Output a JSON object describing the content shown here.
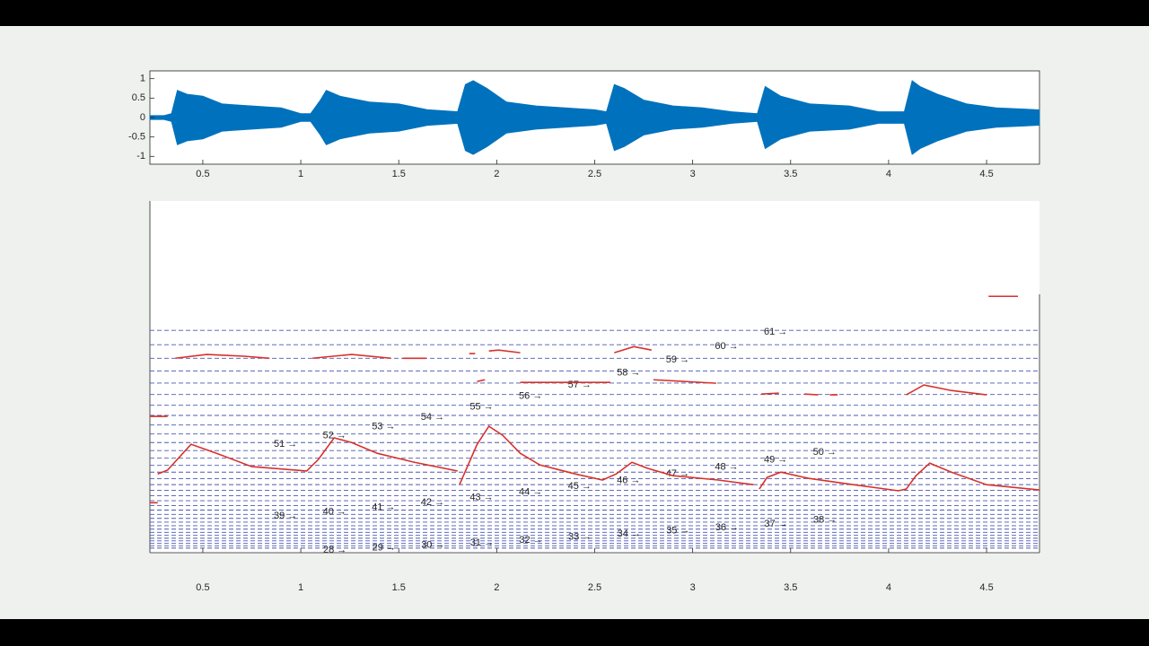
{
  "chart_data": [
    {
      "type": "waveform",
      "x": [
        0.23,
        0.3,
        0.34,
        0.37,
        0.42,
        0.5,
        0.6,
        0.75,
        0.9,
        1.0,
        1.05,
        1.1,
        1.13,
        1.2,
        1.35,
        1.5,
        1.65,
        1.8,
        1.84,
        1.88,
        1.95,
        2.05,
        2.2,
        2.35,
        2.5,
        2.56,
        2.6,
        2.65,
        2.75,
        2.9,
        3.05,
        3.2,
        3.33,
        3.37,
        3.45,
        3.6,
        3.8,
        3.95,
        4.08,
        4.12,
        4.16,
        4.25,
        4.4,
        4.55,
        4.77
      ],
      "values": [
        0.05,
        0.05,
        0.1,
        0.7,
        0.6,
        0.55,
        0.35,
        0.3,
        0.25,
        0.1,
        0.1,
        0.45,
        0.7,
        0.55,
        0.4,
        0.35,
        0.2,
        0.15,
        0.85,
        0.95,
        0.75,
        0.4,
        0.3,
        0.25,
        0.2,
        0.15,
        0.85,
        0.75,
        0.45,
        0.3,
        0.25,
        0.15,
        0.1,
        0.8,
        0.55,
        0.35,
        0.3,
        0.15,
        0.15,
        0.95,
        0.8,
        0.6,
        0.35,
        0.25,
        0.2
      ],
      "color": "#0072bd",
      "xlim": [
        0.23,
        4.77
      ],
      "ylim": [
        -1.2,
        1.2
      ],
      "xticks": [
        0.5,
        1,
        1.5,
        2,
        2.5,
        3,
        3.5,
        4,
        4.5
      ],
      "yticks": [
        1,
        0.5,
        0,
        -0.5,
        -1
      ]
    },
    {
      "type": "pitch",
      "x": [
        0.27,
        0.32,
        0.44,
        0.57,
        0.75,
        1.03,
        1.09,
        1.17,
        1.26,
        1.39,
        1.58,
        1.8,
        null,
        1.81,
        1.9,
        1.96,
        2.03,
        2.12,
        2.22,
        2.4,
        2.54,
        2.61,
        2.69,
        2.77,
        2.9,
        3.13,
        3.31,
        null,
        3.34,
        3.38,
        3.45,
        3.59,
        3.82,
        4.05,
        4.09,
        4.14,
        4.21,
        4.32,
        4.5,
        4.77,
        null,
        0.23,
        0.32,
        null,
        0.23,
        0.27,
        null,
        0.36,
        0.52,
        0.71,
        0.84,
        null,
        1.06,
        1.26,
        1.46,
        null,
        1.52,
        1.64,
        null,
        1.86,
        1.89,
        null,
        1.96,
        2.01,
        2.12,
        null,
        1.9,
        1.94,
        null,
        2.12,
        2.58,
        null,
        2.6,
        2.7,
        2.79,
        null,
        2.8,
        3.12,
        null,
        3.35,
        3.44,
        null,
        3.57,
        3.64,
        null,
        3.7,
        3.74,
        null,
        4.09,
        4.18,
        4.32,
        4.5,
        null,
        4.51,
        4.66
      ],
      "values": [
        386,
        399,
        488,
        457,
        411,
        396,
        436,
        510,
        494,
        457,
        426,
        396,
        null,
        349,
        488,
        550,
        519,
        457,
        417,
        386,
        365,
        386,
        426,
        405,
        380,
        365,
        349,
        null,
        334,
        374,
        392,
        371,
        349,
        328,
        334,
        380,
        423,
        392,
        349,
        331,
        null,
        584,
        584,
        null,
        287,
        287,
        null,
        784,
        797,
        791,
        784,
        null,
        784,
        797,
        784,
        null,
        784,
        784,
        null,
        800,
        800,
        null,
        809,
        812,
        803,
        null,
        704,
        710,
        null,
        701,
        701,
        null,
        803,
        824,
        812,
        null,
        710,
        698,
        null,
        661,
        664,
        null,
        661,
        658,
        null,
        658,
        658,
        null,
        658,
        692,
        673,
        658,
        null,
        997,
        997
      ],
      "color": "#d8312c",
      "reference_lines": {
        "values": [
          130.8,
          138.6,
          146.8,
          155.6,
          164.8,
          174.6,
          185.0,
          196.0,
          207.7,
          220.0,
          233.1,
          246.9,
          261.6,
          277.2,
          293.7,
          311.1,
          329.6,
          349.2,
          370.0,
          392.0,
          415.3,
          440.0,
          466.2,
          493.9,
          523.3,
          554.4,
          587.3,
          622.3,
          659.3,
          698.5,
          740.0,
          784.0,
          830.6,
          880.0
        ],
        "labels": [
          "28 →",
          "29 →",
          "30 →",
          "31 →",
          "32 →",
          "33 →",
          "34 →",
          "35 →",
          "36 →",
          "37 →",
          "38 →",
          "39 →",
          "40 →",
          "41 →",
          "42 →",
          "43 →",
          "44 →",
          "45 →",
          "46 →",
          "47 →",
          "48 →",
          "49 →",
          "50 →",
          "51 →",
          "52 →",
          "53 →",
          "54 →",
          "55 →",
          "56 →",
          "57 →",
          "58 →",
          "59 →",
          "60 →",
          "61 →"
        ],
        "color": "#4a58b0"
      },
      "xlim": [
        0.23,
        4.77
      ],
      "ylim": [
        115,
        1325
      ],
      "xticks": [
        0.5,
        1,
        1.5,
        2,
        2.5,
        3,
        3.5,
        4,
        4.5
      ]
    }
  ]
}
